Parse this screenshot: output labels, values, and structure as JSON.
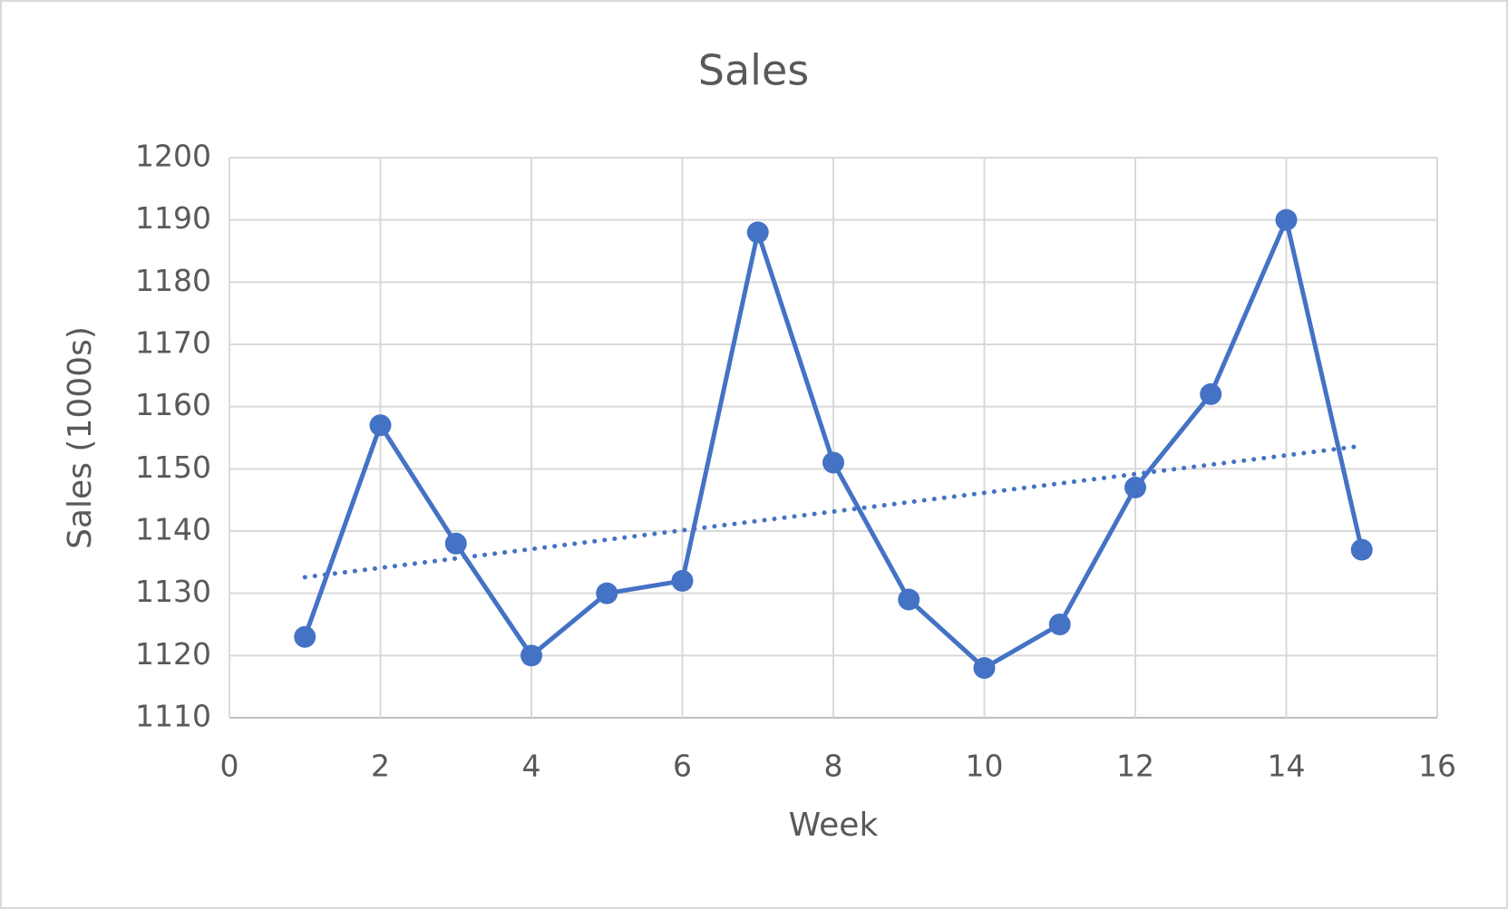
{
  "chart_data": {
    "type": "line",
    "title": "Sales",
    "x_label": "Week",
    "y_label": "Sales (1000s)",
    "x": [
      1,
      2,
      3,
      4,
      5,
      6,
      7,
      8,
      9,
      10,
      11,
      12,
      13,
      14,
      15
    ],
    "values": [
      1123,
      1157,
      1138,
      1120,
      1130,
      1132,
      1188,
      1151,
      1129,
      1118,
      1125,
      1147,
      1162,
      1190,
      1137
    ],
    "color": "#4472c4",
    "markers": true,
    "trendline": "linear",
    "xlim": [
      0,
      16
    ],
    "xticks": [
      0,
      2,
      4,
      6,
      8,
      10,
      12,
      14,
      16
    ],
    "ylim": [
      1110,
      1200
    ],
    "yticks": [
      1110,
      1120,
      1130,
      1140,
      1150,
      1160,
      1170,
      1180,
      1190,
      1200
    ],
    "grid": true
  }
}
